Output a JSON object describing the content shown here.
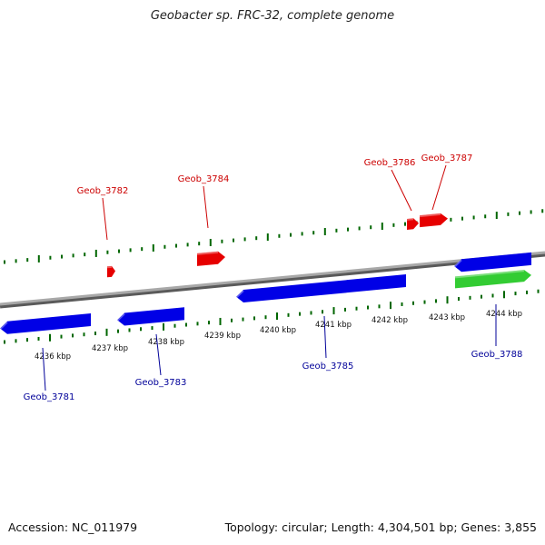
{
  "title": "Geobacter sp. FRC-32, complete genome",
  "footer": {
    "accession": "Accession: NC_011979",
    "summary": "Topology: circular; Length: 4,304,501 bp; Genes: 3,855"
  },
  "colors": {
    "backbone": "#8a8a8a",
    "forward_gene": "#e60000",
    "reverse_gene": "#0000e6",
    "rna_gene": "#33cc33",
    "forward_label": "#cc0000",
    "reverse_label": "#000099",
    "tick": "#006600"
  },
  "ticks": [
    {
      "label": "4236 kbp",
      "value": 4236
    },
    {
      "label": "4237 kbp",
      "value": 4237
    },
    {
      "label": "4238 kbp",
      "value": 4238
    },
    {
      "label": "4239 kbp",
      "value": 4239
    },
    {
      "label": "4240 kbp",
      "value": 4240
    },
    {
      "label": "4241 kbp",
      "value": 4241
    },
    {
      "label": "4242 kbp",
      "value": 4242
    },
    {
      "label": "4243 kbp",
      "value": 4243
    },
    {
      "label": "4244 kbp",
      "value": 4244
    }
  ],
  "genes": [
    {
      "name": "Geob_3781",
      "strand": "reverse"
    },
    {
      "name": "Geob_3782",
      "strand": "forward"
    },
    {
      "name": "Geob_3783",
      "strand": "reverse"
    },
    {
      "name": "Geob_3784",
      "strand": "forward"
    },
    {
      "name": "Geob_3785",
      "strand": "reverse"
    },
    {
      "name": "Geob_3786",
      "strand": "forward"
    },
    {
      "name": "Geob_3787",
      "strand": "forward"
    },
    {
      "name": "Geob_3788",
      "strand": "reverse"
    }
  ]
}
